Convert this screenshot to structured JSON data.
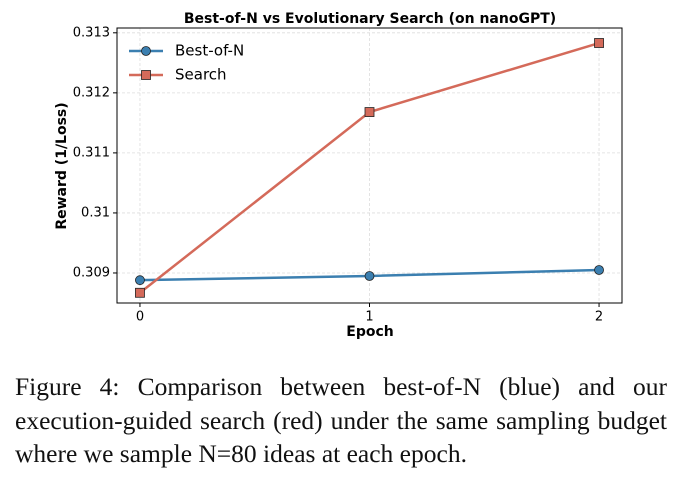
{
  "chart_data": {
    "type": "line",
    "title": "Best-of-N vs Evolutionary Search (on nanoGPT)",
    "x_label": "Epoch",
    "y_label": "Reward (1/Loss)",
    "x": [
      0,
      1,
      2
    ],
    "series": [
      {
        "name": "Best-of-N",
        "color": "#3b7fb0",
        "marker": "circle",
        "values": [
          0.30888,
          0.30895,
          0.30905
        ]
      },
      {
        "name": "Search",
        "color": "#d46a5a",
        "marker": "square",
        "values": [
          0.30867,
          0.31168,
          0.31283
        ]
      }
    ],
    "xlim": [
      -0.1,
      2.1
    ],
    "ylim": [
      0.3085,
      0.31308
    ],
    "xticks": [
      0,
      1,
      2
    ],
    "yticks": [
      0.309,
      0.31,
      0.311,
      0.312,
      0.313
    ],
    "grid": true,
    "legend": "upper-left",
    "caption": "Figure 4: Comparison between best-of-N (blue) and our execution-guided search (red) under the same sampling budget where we sample N=80 ideas at each epoch."
  }
}
